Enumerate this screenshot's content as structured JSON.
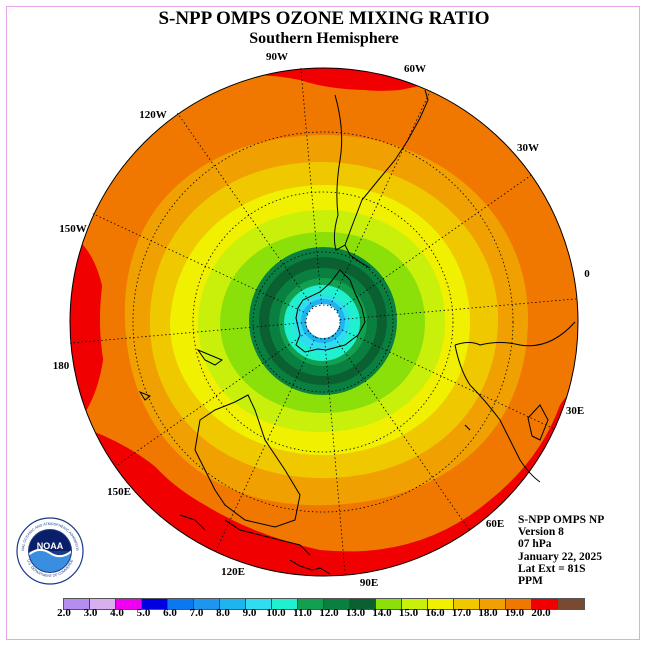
{
  "title": "S-NPP OMPS OZONE MIXING RATIO",
  "subtitle": "Southern Hemisphere",
  "longitude_labels": [
    "90W",
    "60W",
    "30W",
    "0",
    "30E",
    "60E",
    "90E",
    "120E",
    "150E",
    "180",
    "150W",
    "120W"
  ],
  "info": {
    "product": "S-NPP OMPS NP",
    "version": "Version 8",
    "pressure": "07 hPa",
    "date": "January 22, 2025",
    "lat_ext": "Lat Ext = 81S",
    "units": "PPM"
  },
  "logo": {
    "text": "NOAA",
    "ring_text": "NATIONAL OCEANIC AND ATMOSPHERIC ADMINISTRATION",
    "ring_text_bottom": "U.S. DEPARTMENT OF COMMERCE"
  },
  "colorbar": {
    "ticks": [
      "2.0",
      "3.0",
      "4.0",
      "5.0",
      "6.0",
      "7.0",
      "8.0",
      "9.0",
      "10.0",
      "11.0",
      "12.0",
      "13.0",
      "14.0",
      "15.0",
      "16.0",
      "17.0",
      "18.0",
      "19.0",
      "20.0"
    ],
    "colors": [
      "#b58cf0",
      "#d8b0f0",
      "#f000f0",
      "#0000e0",
      "#0a78f0",
      "#1e96f0",
      "#1eb4f0",
      "#30dcf0",
      "#20f0d0",
      "#10a050",
      "#0a8040",
      "#0a6030",
      "#8ce00a",
      "#c8f00a",
      "#f0f000",
      "#f0c800",
      "#f0a000",
      "#f07800",
      "#f00000",
      "#7a4a30"
    ]
  }
}
